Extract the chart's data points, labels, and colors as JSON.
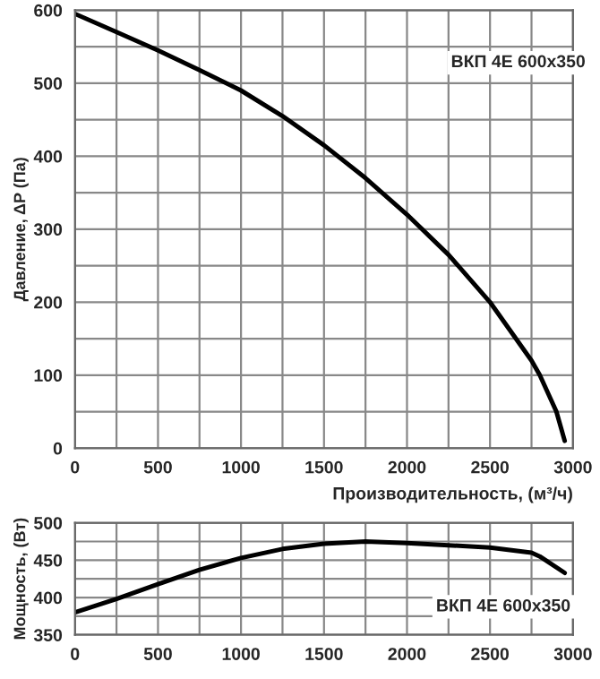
{
  "chart_data": [
    {
      "type": "line",
      "ylabel": "Давление, ΔP (Па)",
      "xlabel": "Производительность, (м³/ч)",
      "xlim": [
        0,
        3000
      ],
      "xticks": [
        0,
        {
          "value": 250,
          "label": null
        },
        500,
        {
          "value": 750,
          "label": null
        },
        1000,
        {
          "value": 1250,
          "label": null
        },
        1500,
        {
          "value": 1750,
          "label": null
        },
        2000,
        {
          "value": 2250,
          "label": null
        },
        2500,
        {
          "value": 2750,
          "label": null
        },
        3000
      ],
      "ylim": [
        0,
        600
      ],
      "yticks": [
        0,
        {
          "value": 50,
          "label": null
        },
        100,
        {
          "value": 150,
          "label": null
        },
        200,
        {
          "value": 250,
          "label": null
        },
        300,
        {
          "value": 350,
          "label": null
        },
        400,
        {
          "value": 450,
          "label": null
        },
        500,
        {
          "value": 550,
          "label": null
        },
        600
      ],
      "grid": true,
      "series": [
        {
          "name": "ВКП 4Е 600x350",
          "color": "#000000",
          "x": [
            0,
            250,
            500,
            750,
            1000,
            1250,
            1500,
            1750,
            2000,
            2250,
            2500,
            2750,
            2800,
            2900,
            2950
          ],
          "values": [
            595,
            570,
            545,
            518,
            490,
            455,
            415,
            370,
            320,
            265,
            200,
            120,
            100,
            50,
            10
          ]
        }
      ]
    },
    {
      "type": "line",
      "ylabel": "Мощность, (Вт)",
      "xlim": [
        0,
        3000
      ],
      "xticks": [
        0,
        {
          "value": 250,
          "label": null
        },
        500,
        {
          "value": 750,
          "label": null
        },
        1000,
        {
          "value": 1250,
          "label": null
        },
        1500,
        {
          "value": 1750,
          "label": null
        },
        2000,
        {
          "value": 2250,
          "label": null
        },
        2500,
        {
          "value": 2750,
          "label": null
        },
        3000
      ],
      "ylim": [
        350,
        500
      ],
      "yticks": [
        350,
        {
          "value": 375,
          "label": null
        },
        400,
        {
          "value": 425,
          "label": null
        },
        450,
        {
          "value": 475,
          "label": null
        },
        500
      ],
      "grid": true,
      "series": [
        {
          "name": "ВКП 4Е 600x350",
          "color": "#000000",
          "x": [
            0,
            250,
            500,
            750,
            1000,
            1250,
            1500,
            1750,
            2000,
            2250,
            2500,
            2750,
            2800,
            2950
          ],
          "values": [
            380,
            398,
            418,
            437,
            453,
            465,
            472,
            475,
            473,
            470,
            467,
            460,
            455,
            433
          ]
        }
      ]
    }
  ]
}
